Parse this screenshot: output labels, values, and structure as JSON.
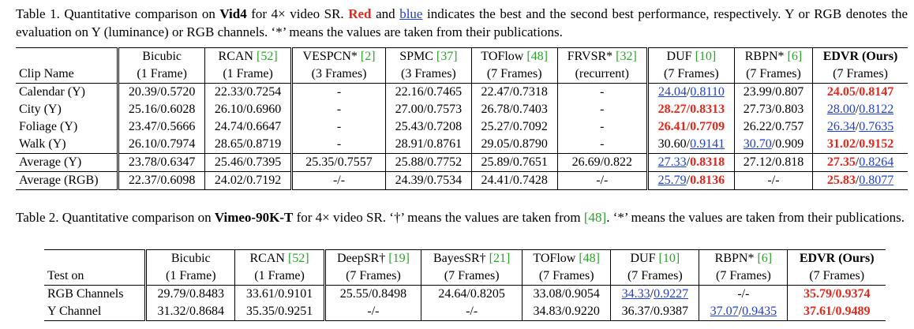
{
  "table1": {
    "caption": {
      "prefix": "Table 1. Quantitative comparison on ",
      "dataset": "Vid4",
      "middle": " for 4× video SR. ",
      "red_word": "Red",
      "and_word": " and ",
      "blue_word": "blue",
      "rest": " indicates the best and the second best performance, respectively. Y or RGB denotes the evaluation on Y (luminance) or RGB channels. ‘*’ means the values are taken from their publications."
    },
    "header_row1": [
      {
        "text": "",
        "cite": ""
      },
      {
        "text": "Bicubic",
        "cite": ""
      },
      {
        "text": "RCAN ",
        "cite": "[52]"
      },
      {
        "text": "VESPCN* ",
        "cite": "[2]"
      },
      {
        "text": "SPMC ",
        "cite": "[37]"
      },
      {
        "text": "TOFlow ",
        "cite": "[48]"
      },
      {
        "text": "FRVSR* ",
        "cite": "[32]"
      },
      {
        "text": "DUF ",
        "cite": "[10]"
      },
      {
        "text": "RBPN* ",
        "cite": "[6]"
      },
      {
        "text": "EDVR (Ours)",
        "cite": ""
      }
    ],
    "header_row2": [
      "Clip Name",
      "(1 Frame)",
      "(1 Frame)",
      "(3 Frames)",
      "(3 Frames)",
      "(7 Frames)",
      "(recurrent)",
      "(7 Frames)",
      "(7 Frames)",
      "(7 Frames)"
    ],
    "rows": [
      {
        "name": "Calendar (Y)",
        "cells": [
          [
            {
              "t": "20.39/0.5720"
            }
          ],
          [
            {
              "t": "22.33/0.7254"
            }
          ],
          [
            {
              "t": "-"
            }
          ],
          [
            {
              "t": "22.16/0.7465"
            }
          ],
          [
            {
              "t": "22.47/0.7318"
            }
          ],
          [
            {
              "t": "-"
            }
          ],
          [
            {
              "t": "24.04",
              "s": "second"
            },
            {
              "t": "/"
            },
            {
              "t": "0.8110",
              "s": "second"
            }
          ],
          [
            {
              "t": "23.99/0.807"
            }
          ],
          [
            {
              "t": "24.05",
              "s": "best"
            },
            {
              "t": "/",
              "s": "best"
            },
            {
              "t": "0.8147",
              "s": "best"
            }
          ]
        ]
      },
      {
        "name": "City (Y)",
        "cells": [
          [
            {
              "t": "25.16/0.6028"
            }
          ],
          [
            {
              "t": "26.10/0.6960"
            }
          ],
          [
            {
              "t": "-"
            }
          ],
          [
            {
              "t": "27.00/0.7573"
            }
          ],
          [
            {
              "t": "26.78/0.7403"
            }
          ],
          [
            {
              "t": "-"
            }
          ],
          [
            {
              "t": "28.27",
              "s": "best"
            },
            {
              "t": "/",
              "s": "best"
            },
            {
              "t": "0.8313",
              "s": "best"
            }
          ],
          [
            {
              "t": "27.73/0.803"
            }
          ],
          [
            {
              "t": "28.00",
              "s": "second"
            },
            {
              "t": "/"
            },
            {
              "t": "0.8122",
              "s": "second"
            }
          ]
        ]
      },
      {
        "name": "Foliage (Y)",
        "cells": [
          [
            {
              "t": "23.47/0.5666"
            }
          ],
          [
            {
              "t": "24.74/0.6647"
            }
          ],
          [
            {
              "t": "-"
            }
          ],
          [
            {
              "t": "25.43/0.7208"
            }
          ],
          [
            {
              "t": "25.27/0.7092"
            }
          ],
          [
            {
              "t": "-"
            }
          ],
          [
            {
              "t": "26.41",
              "s": "best"
            },
            {
              "t": "/",
              "s": "best"
            },
            {
              "t": "0.7709",
              "s": "best"
            }
          ],
          [
            {
              "t": "26.22/0.757"
            }
          ],
          [
            {
              "t": "26.34",
              "s": "second"
            },
            {
              "t": "/"
            },
            {
              "t": "0.7635",
              "s": "second"
            }
          ]
        ]
      },
      {
        "name": "Walk (Y)",
        "cells": [
          [
            {
              "t": "26.10/0.7974"
            }
          ],
          [
            {
              "t": "28.65/0.8719"
            }
          ],
          [
            {
              "t": "-"
            }
          ],
          [
            {
              "t": "28.91/0.8761"
            }
          ],
          [
            {
              "t": "29.05/0.8790"
            }
          ],
          [
            {
              "t": "-"
            }
          ],
          [
            {
              "t": "30.60/"
            },
            {
              "t": "0.9141",
              "s": "second"
            }
          ],
          [
            {
              "t": "30.70",
              "s": "second"
            },
            {
              "t": "/0.909"
            }
          ],
          [
            {
              "t": "31.02",
              "s": "best"
            },
            {
              "t": "/",
              "s": "best"
            },
            {
              "t": "0.9152",
              "s": "best"
            }
          ]
        ]
      },
      {
        "name": "Average (Y)",
        "sep": true,
        "cells": [
          [
            {
              "t": "23.78/0.6347"
            }
          ],
          [
            {
              "t": "25.46/0.7395"
            }
          ],
          [
            {
              "t": "25.35/0.7557"
            }
          ],
          [
            {
              "t": "25.88/0.7752"
            }
          ],
          [
            {
              "t": "25.89/0.7651"
            }
          ],
          [
            {
              "t": "26.69/0.822"
            }
          ],
          [
            {
              "t": "27.33",
              "s": "second"
            },
            {
              "t": "/"
            },
            {
              "t": "0.8318",
              "s": "best"
            }
          ],
          [
            {
              "t": "27.12/0.818"
            }
          ],
          [
            {
              "t": "27.35",
              "s": "best"
            },
            {
              "t": "/"
            },
            {
              "t": "0.8264",
              "s": "second"
            }
          ]
        ]
      },
      {
        "name": "Average (RGB)",
        "sep": true,
        "cells": [
          [
            {
              "t": "22.37/0.6098"
            }
          ],
          [
            {
              "t": "24.02/0.7192"
            }
          ],
          [
            {
              "t": "-/-"
            }
          ],
          [
            {
              "t": "24.39/0.7534"
            }
          ],
          [
            {
              "t": "24.41/0.7428"
            }
          ],
          [
            {
              "t": "-/-"
            }
          ],
          [
            {
              "t": "25.79",
              "s": "second"
            },
            {
              "t": "/"
            },
            {
              "t": "0.8136",
              "s": "best"
            }
          ],
          [
            {
              "t": "-/-"
            }
          ],
          [
            {
              "t": "25.83",
              "s": "best"
            },
            {
              "t": "/"
            },
            {
              "t": "0.8077",
              "s": "second"
            }
          ]
        ]
      }
    ]
  },
  "table2": {
    "caption": {
      "prefix": "Table 2. Quantitative comparison on ",
      "dataset": "Vimeo-90K-T",
      "middle": " for 4× video SR. ‘†’ means the values are taken from ",
      "cite": "[48]",
      "rest": ". ‘*’ means the values are taken from their publications."
    },
    "header_row1": [
      {
        "text": "",
        "cite": ""
      },
      {
        "text": "Bicubic",
        "cite": ""
      },
      {
        "text": "RCAN ",
        "cite": "[52]"
      },
      {
        "text": "DeepSR† ",
        "cite": "[19]"
      },
      {
        "text": "BayesSR† ",
        "cite": "[21]"
      },
      {
        "text": "TOFlow ",
        "cite": "[48]"
      },
      {
        "text": "DUF ",
        "cite": "[10]"
      },
      {
        "text": "RBPN* ",
        "cite": "[6]"
      },
      {
        "text": "EDVR (Ours)",
        "cite": ""
      }
    ],
    "header_row2": [
      "Test on",
      "(1 Frame)",
      "(1 Frame)",
      "(7 Frames)",
      "(7 Frames)",
      "(7 Frames)",
      "(7 Frames)",
      "(7 Frames)",
      "(7 Frames)"
    ],
    "rows": [
      {
        "name": "RGB Channels",
        "cells": [
          [
            {
              "t": "29.79/0.8483"
            }
          ],
          [
            {
              "t": "33.61/0.9101"
            }
          ],
          [
            {
              "t": "25.55/0.8498"
            }
          ],
          [
            {
              "t": "24.64/0.8205"
            }
          ],
          [
            {
              "t": "33.08/0.9054"
            }
          ],
          [
            {
              "t": "34.33",
              "s": "second"
            },
            {
              "t": "/"
            },
            {
              "t": "0.9227",
              "s": "second"
            }
          ],
          [
            {
              "t": "-/-"
            }
          ],
          [
            {
              "t": "35.79",
              "s": "best"
            },
            {
              "t": "/",
              "s": "best"
            },
            {
              "t": "0.9374",
              "s": "best"
            }
          ]
        ]
      },
      {
        "name": "Y Channel",
        "cells": [
          [
            {
              "t": "31.32/0.8684"
            }
          ],
          [
            {
              "t": "35.35/0.9251"
            }
          ],
          [
            {
              "t": "-/-"
            }
          ],
          [
            {
              "t": "-/-"
            }
          ],
          [
            {
              "t": "34.83/0.9220"
            }
          ],
          [
            {
              "t": "36.37/0.9387"
            }
          ],
          [
            {
              "t": "37.07",
              "s": "second"
            },
            {
              "t": "/"
            },
            {
              "t": "0.9435",
              "s": "second"
            }
          ],
          [
            {
              "t": "37.61",
              "s": "best"
            },
            {
              "t": "/",
              "s": "best"
            },
            {
              "t": "0.9489",
              "s": "best"
            }
          ]
        ]
      }
    ]
  }
}
